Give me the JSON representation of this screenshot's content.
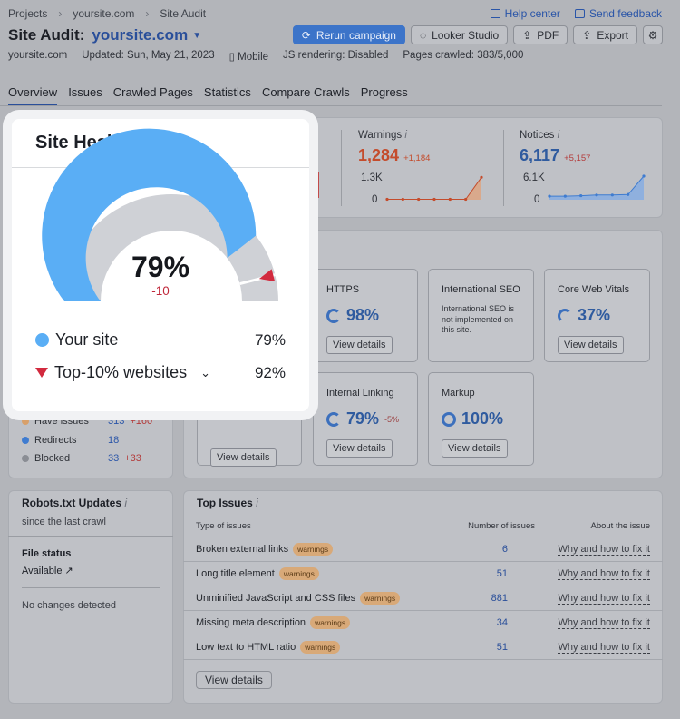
{
  "breadcrumb": [
    "Projects",
    "yoursite.com",
    "Site Audit"
  ],
  "toplinks": {
    "help": "Help center",
    "feedback": "Send feedback"
  },
  "title": {
    "prefix": "Site Audit:",
    "site": "yoursite.com"
  },
  "buttons": {
    "rerun": "Rerun campaign",
    "looker": "Looker Studio",
    "pdf": "PDF",
    "export": "Export"
  },
  "meta": {
    "domain": "yoursite.com",
    "updated": "Updated: Sun, May 21, 2023",
    "device": "Mobile",
    "js": "JS rendering: Disabled",
    "pages": "Pages crawled: 383/5,000"
  },
  "tabs": [
    "Overview",
    "Issues",
    "Crawled Pages",
    "Statistics",
    "Compare Crawls",
    "Progress"
  ],
  "kpis": {
    "warnings": {
      "label": "Warnings",
      "value": "1,284",
      "delta": "+1,184",
      "ymax": "1.3K",
      "ymin": "0",
      "points": [
        0.02,
        0.02,
        0.02,
        0.02,
        0.02,
        0.02,
        0.95
      ]
    },
    "notices": {
      "label": "Notices",
      "value": "6,117",
      "delta": "+5,157",
      "ymax": "6.1K",
      "ymin": "0",
      "points": [
        0.15,
        0.15,
        0.17,
        0.2,
        0.2,
        0.22,
        1.0
      ]
    }
  },
  "cards": [
    {
      "name": "HTTPS",
      "value": "98%",
      "action": "View details"
    },
    {
      "name": "International SEO",
      "note": "International SEO is not implemented on this site."
    },
    {
      "name": "Core Web Vitals",
      "value": "37%",
      "action": "View details"
    },
    {
      "name": "Internal Linking",
      "value": "79%",
      "delta": "-5%",
      "action": "View details"
    },
    {
      "name": "Markup",
      "value": "100%",
      "action": "View details"
    }
  ],
  "left_card_action": "View details",
  "crawl_status": [
    {
      "label": "Have issues",
      "value": "313",
      "delta": "+160",
      "color": "#d8a06a"
    },
    {
      "label": "Redirects",
      "value": "18",
      "delta": "",
      "color": "#3f7cd0"
    },
    {
      "label": "Blocked",
      "value": "33",
      "delta": "+33",
      "color": "#8a8d94"
    }
  ],
  "robots": {
    "title": "Robots.txt Updates",
    "since": "since the last crawl",
    "status_label": "File status",
    "status_value": "Available",
    "nochange": "No changes detected"
  },
  "top_issues": {
    "title": "Top Issues",
    "headers": [
      "Type of issues",
      "Number of issues",
      "About the issue"
    ],
    "rows": [
      {
        "name": "Broken external links",
        "tag": "warnings",
        "count": "6",
        "link": "Why and how to fix it"
      },
      {
        "name": "Long title element",
        "tag": "warnings",
        "count": "51",
        "link": "Why and how to fix it"
      },
      {
        "name": "Unminified JavaScript and CSS files",
        "tag": "warnings",
        "count": "881",
        "link": "Why and how to fix it"
      },
      {
        "name": "Missing meta description",
        "tag": "warnings",
        "count": "34",
        "link": "Why and how to fix it"
      },
      {
        "name": "Low text to HTML ratio",
        "tag": "warnings",
        "count": "51",
        "link": "Why and how to fix it"
      }
    ],
    "action": "View details"
  },
  "site_health": {
    "title": "Site Health",
    "value": "79%",
    "delta": "-10",
    "your_site_label": "Your site",
    "your_site_value": "79%",
    "top_label": "Top-10% websites",
    "top_value": "92%",
    "your_fraction": 0.79,
    "top_fraction": 0.92,
    "colors": {
      "your_site": "#5aaef5",
      "top": "#d22a3e",
      "track": "#cfd1d6"
    }
  }
}
